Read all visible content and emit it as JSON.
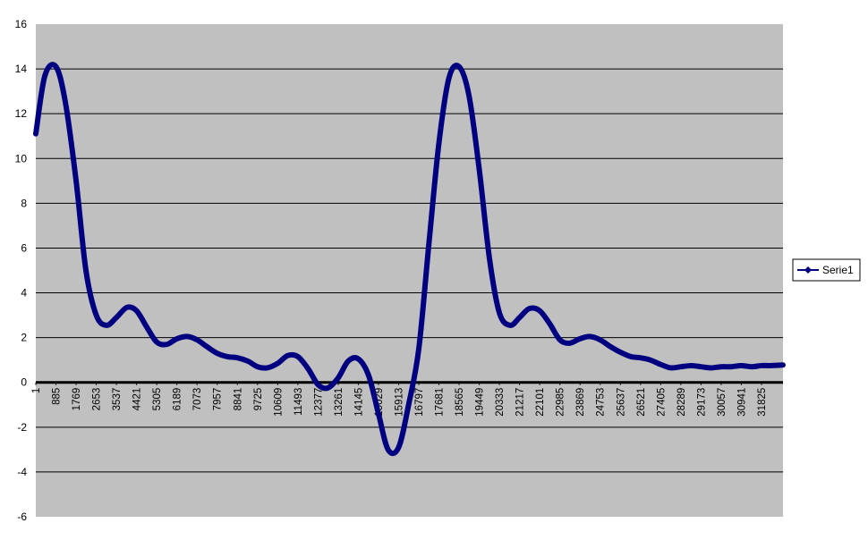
{
  "chart_data": {
    "type": "line",
    "title": "",
    "xlabel": "",
    "ylabel": "",
    "ylim": [
      -6,
      16
    ],
    "y_ticks": [
      "-6",
      "-4",
      "-2",
      "0",
      "2",
      "4",
      "6",
      "8",
      "10",
      "12",
      "14",
      "16"
    ],
    "x_tick_labels": [
      "1",
      "885",
      "1769",
      "2653",
      "3537",
      "4421",
      "5305",
      "6189",
      "7073",
      "7957",
      "8841",
      "9725",
      "10609",
      "11493",
      "12377",
      "13261",
      "14145",
      "15029",
      "15913",
      "16797",
      "17681",
      "18565",
      "19449",
      "20333",
      "21217",
      "22101",
      "22985",
      "23869",
      "24753",
      "25637",
      "26521",
      "27405",
      "28289",
      "29173",
      "30057",
      "30941",
      "31825"
    ],
    "x_max": 32768,
    "grid": {
      "horizontal": true,
      "vertical": false
    },
    "legend": {
      "position": "right"
    },
    "colors": {
      "plot_background": "#C0C0C0",
      "series": "#000080",
      "zero_line": "#000000",
      "gridline": "#000000"
    },
    "series": [
      {
        "name": "Serie1",
        "x": [
          1,
          400,
          885,
          1300,
          1769,
          2200,
          2653,
          3100,
          3537,
          4000,
          4421,
          4850,
          5305,
          5750,
          6189,
          6650,
          7073,
          7500,
          7957,
          8400,
          8841,
          9300,
          9725,
          10150,
          10609,
          11050,
          11493,
          11950,
          12377,
          12800,
          13261,
          13700,
          14145,
          14600,
          15029,
          15450,
          15913,
          16350,
          16797,
          17250,
          17681,
          18120,
          18565,
          19000,
          19449,
          19900,
          20333,
          20800,
          21217,
          21650,
          22101,
          22550,
          22985,
          23400,
          23869,
          24300,
          24753,
          25200,
          25637,
          26100,
          26521,
          26950,
          27405,
          27850,
          28289,
          28750,
          29173,
          29600,
          30057,
          30500,
          30941,
          31400,
          31825,
          32200,
          32767
        ],
        "values": [
          11.1,
          13.7,
          14.1,
          12.5,
          9.0,
          5.0,
          3.0,
          2.55,
          2.9,
          3.35,
          3.2,
          2.5,
          1.8,
          1.7,
          1.95,
          2.05,
          1.9,
          1.6,
          1.3,
          1.15,
          1.1,
          0.95,
          0.7,
          0.65,
          0.85,
          1.2,
          1.15,
          0.6,
          -0.1,
          -0.25,
          0.2,
          0.95,
          1.05,
          0.3,
          -1.4,
          -3.0,
          -2.9,
          -1.0,
          1.5,
          6.3,
          10.7,
          13.6,
          14.1,
          12.8,
          9.5,
          5.5,
          3.1,
          2.55,
          2.9,
          3.3,
          3.2,
          2.6,
          1.9,
          1.75,
          1.95,
          2.05,
          1.9,
          1.6,
          1.35,
          1.15,
          1.1,
          1.0,
          0.8,
          0.65,
          0.7,
          0.75,
          0.7,
          0.65,
          0.7,
          0.7,
          0.75,
          0.7,
          0.75,
          0.75,
          0.78
        ]
      }
    ]
  }
}
